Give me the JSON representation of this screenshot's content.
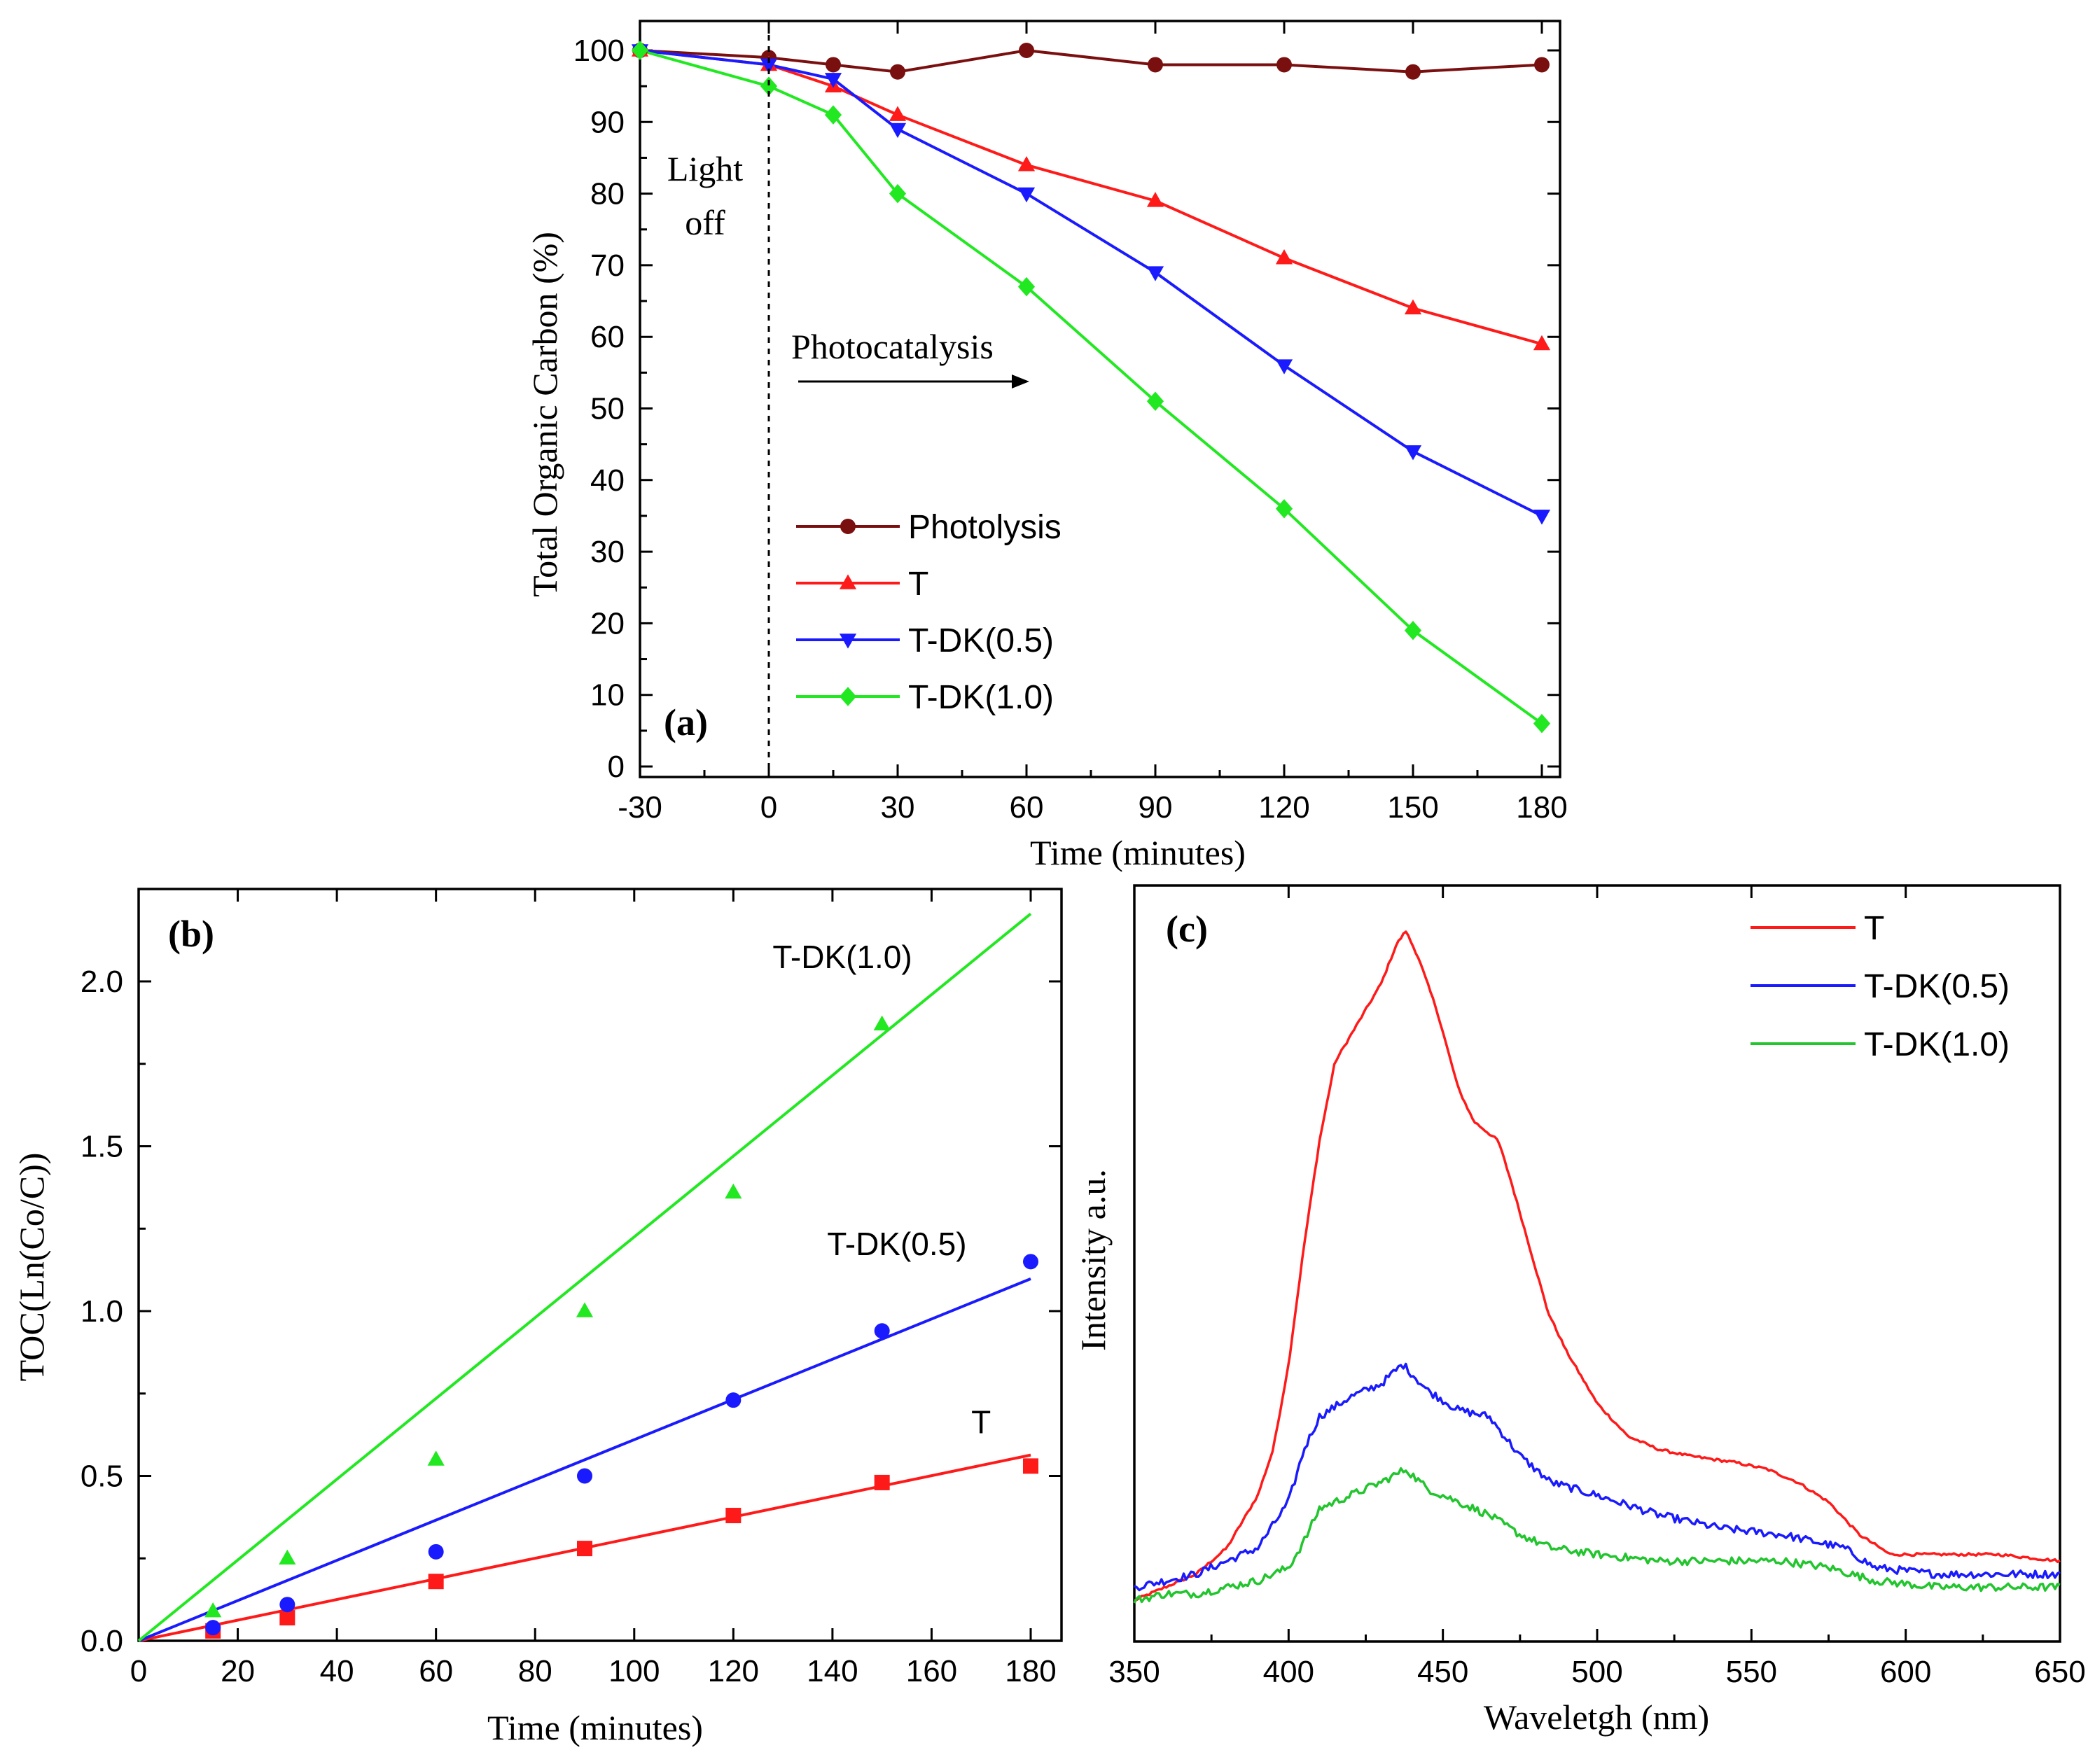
{
  "chart_data": [
    {
      "id": "a",
      "type": "line",
      "panel_label": "(a)",
      "xlabel": "Time (minutes)",
      "ylabel": "Total Organic Carbon (%)",
      "xlim": [
        -30,
        185
      ],
      "ylim": [
        0,
        104
      ],
      "xticks": [
        -30,
        0,
        30,
        60,
        90,
        120,
        150,
        180
      ],
      "yticks": [
        0,
        10,
        20,
        30,
        40,
        50,
        60,
        70,
        80,
        90,
        100
      ],
      "x": [
        -30,
        0,
        15,
        30,
        60,
        90,
        120,
        150,
        180
      ],
      "series": [
        {
          "name": "Photolysis",
          "color": "#7a0f0f",
          "marker": "circle",
          "values": [
            100,
            99,
            98,
            97,
            100,
            98,
            98,
            97,
            98
          ]
        },
        {
          "name": "T",
          "color": "#ff1a1a",
          "marker": "triangle-up",
          "values": [
            100,
            98,
            95,
            91,
            84,
            79,
            71,
            64,
            59
          ]
        },
        {
          "name": "T-DK(0.5)",
          "color": "#1a1aff",
          "marker": "triangle-down",
          "values": [
            100,
            98,
            96,
            89,
            80,
            69,
            56,
            44,
            35
          ]
        },
        {
          "name": "T-DK(1.0)",
          "color": "#22e822",
          "marker": "diamond",
          "values": [
            100,
            95,
            91,
            80,
            67,
            51,
            36,
            19,
            6
          ]
        }
      ],
      "annotations": {
        "light_off_line1": "Light",
        "light_off_line2": "off",
        "light_off_x": 0,
        "photocatalysis": "Photocatalysis"
      },
      "legend_position": "lower-left"
    },
    {
      "id": "b",
      "type": "scatter",
      "panel_label": "(b)",
      "xlabel": "Time (minutes)",
      "ylabel": "TOC(Ln(Co/C))",
      "xlim": [
        0,
        185
      ],
      "ylim": [
        0,
        2.3
      ],
      "xticks": [
        0,
        20,
        40,
        60,
        80,
        100,
        120,
        140,
        160,
        180
      ],
      "yticks": [
        0.0,
        0.5,
        1.0,
        1.5,
        2.0
      ],
      "ytick_labels": [
        "0.0",
        "0.5",
        "1.0",
        "1.5",
        "2.0"
      ],
      "x": [
        15,
        30,
        60,
        90,
        120,
        150,
        180
      ],
      "series": [
        {
          "name": "T",
          "color": "#ff1a1a",
          "marker": "square",
          "values": [
            0.03,
            0.07,
            0.18,
            0.28,
            0.38,
            0.48,
            0.53
          ],
          "fit_slope": 0.00313,
          "label_x": 170,
          "label_y": 0.63
        },
        {
          "name": "T-DK(0.5)",
          "color": "#1a1aff",
          "marker": "circle",
          "values": [
            0.04,
            0.11,
            0.27,
            0.5,
            0.73,
            0.94,
            1.15
          ],
          "fit_slope": 0.0061,
          "label_x": 153,
          "label_y": 1.17
        },
        {
          "name": "T-DK(1.0)",
          "color": "#22e822",
          "marker": "triangle-up",
          "values": [
            0.09,
            0.25,
            0.55,
            1.0,
            1.36,
            1.87,
            null
          ],
          "fit_slope": 0.01225,
          "label_x": 142,
          "label_y": 2.04
        }
      ]
    },
    {
      "id": "c",
      "type": "line",
      "panel_label": "(c)",
      "xlabel": "Waveletgh (nm)",
      "ylabel": "Intensity a.u.",
      "xlim": [
        350,
        650
      ],
      "ylim": [
        0,
        1.1
      ],
      "xticks": [
        350,
        400,
        450,
        500,
        550,
        600,
        650
      ],
      "legend_position": "top-right",
      "series": [
        {
          "name": "T",
          "color": "#ff1a1a",
          "points": [
            [
              350,
              0.02
            ],
            [
              360,
              0.04
            ],
            [
              370,
              0.06
            ],
            [
              380,
              0.1
            ],
            [
              390,
              0.18
            ],
            [
              395,
              0.25
            ],
            [
              400,
              0.38
            ],
            [
              405,
              0.56
            ],
            [
              410,
              0.72
            ],
            [
              415,
              0.84
            ],
            [
              420,
              0.88
            ],
            [
              425,
              0.92
            ],
            [
              430,
              0.96
            ],
            [
              435,
              1.02
            ],
            [
              438,
              1.04
            ],
            [
              442,
              1.0
            ],
            [
              448,
              0.92
            ],
            [
              455,
              0.8
            ],
            [
              460,
              0.75
            ],
            [
              468,
              0.72
            ],
            [
              472,
              0.66
            ],
            [
              478,
              0.56
            ],
            [
              484,
              0.46
            ],
            [
              490,
              0.4
            ],
            [
              500,
              0.32
            ],
            [
              510,
              0.27
            ],
            [
              520,
              0.25
            ],
            [
              530,
              0.24
            ],
            [
              545,
              0.23
            ],
            [
              555,
              0.22
            ],
            [
              565,
              0.2
            ],
            [
              575,
              0.17
            ],
            [
              585,
              0.12
            ],
            [
              595,
              0.09
            ],
            [
              610,
              0.09
            ],
            [
              630,
              0.09
            ],
            [
              650,
              0.08
            ]
          ]
        },
        {
          "name": "T-DK(0.5)",
          "color": "#1a1aff",
          "points": [
            [
              350,
              0.04
            ],
            [
              360,
              0.05
            ],
            [
              370,
              0.06
            ],
            [
              380,
              0.08
            ],
            [
              390,
              0.1
            ],
            [
              400,
              0.17
            ],
            [
              405,
              0.25
            ],
            [
              410,
              0.3
            ],
            [
              420,
              0.33
            ],
            [
              430,
              0.35
            ],
            [
              437,
              0.38
            ],
            [
              445,
              0.34
            ],
            [
              455,
              0.31
            ],
            [
              465,
              0.3
            ],
            [
              475,
              0.24
            ],
            [
              485,
              0.2
            ],
            [
              500,
              0.18
            ],
            [
              520,
              0.15
            ],
            [
              540,
              0.13
            ],
            [
              560,
              0.12
            ],
            [
              580,
              0.1
            ],
            [
              590,
              0.07
            ],
            [
              610,
              0.06
            ],
            [
              630,
              0.06
            ],
            [
              650,
              0.06
            ]
          ]
        },
        {
          "name": "T-DK(1.0)",
          "color": "#22c52e",
          "points": [
            [
              350,
              0.02
            ],
            [
              360,
              0.03
            ],
            [
              370,
              0.03
            ],
            [
              380,
              0.04
            ],
            [
              390,
              0.05
            ],
            [
              400,
              0.07
            ],
            [
              405,
              0.11
            ],
            [
              410,
              0.16
            ],
            [
              420,
              0.18
            ],
            [
              430,
              0.2
            ],
            [
              438,
              0.22
            ],
            [
              445,
              0.19
            ],
            [
              455,
              0.17
            ],
            [
              465,
              0.15
            ],
            [
              475,
              0.12
            ],
            [
              485,
              0.1
            ],
            [
              500,
              0.09
            ],
            [
              520,
              0.08
            ],
            [
              540,
              0.08
            ],
            [
              560,
              0.08
            ],
            [
              575,
              0.07
            ],
            [
              590,
              0.05
            ],
            [
              610,
              0.04
            ],
            [
              630,
              0.04
            ],
            [
              650,
              0.04
            ]
          ]
        }
      ]
    }
  ]
}
